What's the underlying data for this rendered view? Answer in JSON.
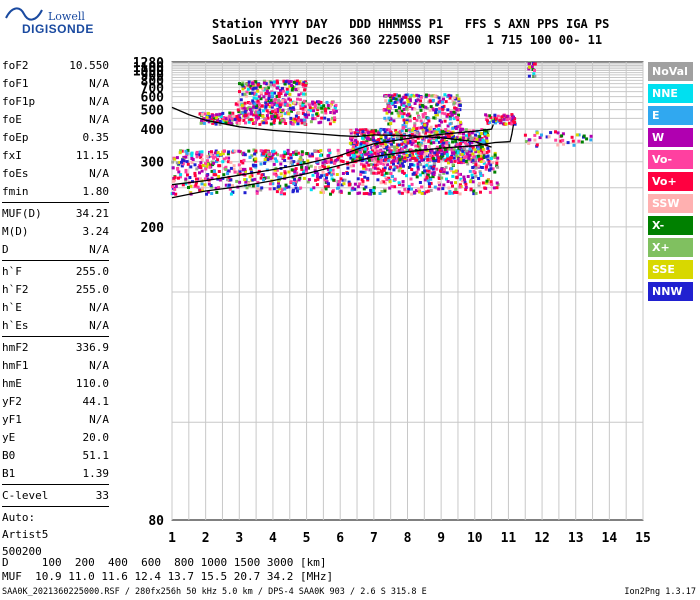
{
  "logo": {
    "line1": "Lowell",
    "line2": "DIGISONDE"
  },
  "header": {
    "line1": "Station YYYY DAY   DDD HHMMSS P1   FFS S AXN PPS IGA PS",
    "line2": "SaoLuis 2021 Dec26 360 225000 RSF     1 715 100 00- 11"
  },
  "params": {
    "group1": [
      {
        "k": "foF2",
        "v": "10.550"
      },
      {
        "k": "foF1",
        "v": "N/A"
      },
      {
        "k": "foF1p",
        "v": "N/A"
      },
      {
        "k": "foE",
        "v": "N/A"
      },
      {
        "k": "foEp",
        "v": "0.35"
      },
      {
        "k": "fxI",
        "v": "11.15"
      },
      {
        "k": "foEs",
        "v": "N/A"
      },
      {
        "k": "fmin",
        "v": "1.80"
      }
    ],
    "group2": [
      {
        "k": "MUF(D)",
        "v": "34.21"
      },
      {
        "k": "M(D)",
        "v": "3.24"
      },
      {
        "k": "D",
        "v": "N/A"
      }
    ],
    "group3": [
      {
        "k": "h`F",
        "v": "255.0"
      },
      {
        "k": "h`F2",
        "v": "255.0"
      },
      {
        "k": "h`E",
        "v": "N/A"
      },
      {
        "k": "h`Es",
        "v": "N/A"
      }
    ],
    "group4": [
      {
        "k": "hmF2",
        "v": "336.9"
      },
      {
        "k": "hmF1",
        "v": "N/A"
      },
      {
        "k": "hmE",
        "v": "110.0"
      },
      {
        "k": "yF2",
        "v": "44.1"
      },
      {
        "k": "yF1",
        "v": "N/A"
      },
      {
        "k": "yE",
        "v": "20.0"
      },
      {
        "k": "B0",
        "v": "51.1"
      },
      {
        "k": "B1",
        "v": "1.39"
      }
    ],
    "clevel": {
      "k": "C-level",
      "v": "33"
    },
    "auto": [
      "Auto:",
      "Artist5",
      "500200"
    ]
  },
  "legend": [
    {
      "label": "NoVal",
      "color": "#a0a0a0"
    },
    {
      "label": "NNE",
      "color": "#00e0f0"
    },
    {
      "label": "E",
      "color": "#30a8f0"
    },
    {
      "label": "W",
      "color": "#b000b0"
    },
    {
      "label": "Vo-",
      "color": "#ff40a0"
    },
    {
      "label": "Vo+",
      "color": "#ff0040"
    },
    {
      "label": "SSW",
      "color": "#ffb0b0"
    },
    {
      "label": "X-",
      "color": "#008000"
    },
    {
      "label": "X+",
      "color": "#80c060"
    },
    {
      "label": "SSE",
      "color": "#d8d800"
    },
    {
      "label": "NNW",
      "color": "#2020d0"
    }
  ],
  "footer": {
    "line1": "D     100  200  400  600  800 1000 1500 3000 [km]",
    "line2": "MUF  10.9 11.0 11.6 12.4 13.7 15.5 20.7 34.2 [MHz]",
    "bottom": "SAA0K_2021360225000.RSF / 280fx256h 50 kHz 5.0 km / DPS-4 SAA0K 903 / 2.6 S 315.8 E",
    "version": "Ion2Png 1.3.17"
  },
  "chart_data": {
    "type": "scatter",
    "x_axis": {
      "range": [
        1,
        15
      ],
      "ticks": [
        1,
        2,
        3,
        4,
        5,
        6,
        7,
        8,
        9,
        10,
        11,
        12,
        13,
        14,
        15
      ]
    },
    "y_axis": {
      "range": [
        80,
        1280
      ],
      "scale": "reciprocal",
      "ticks": [
        80,
        200,
        300,
        400,
        500,
        600,
        700,
        800,
        900,
        1000,
        1100,
        1280
      ]
    },
    "grid": true,
    "ordinary_trace": [
      [
        1,
        255
      ],
      [
        2,
        262
      ],
      [
        3,
        272
      ],
      [
        4,
        283
      ],
      [
        5,
        296
      ],
      [
        6,
        315
      ],
      [
        6.5,
        332
      ],
      [
        7,
        348
      ],
      [
        8,
        365
      ],
      [
        9,
        380
      ],
      [
        10,
        392
      ],
      [
        10.5,
        400
      ],
      [
        10.55,
        420
      ]
    ],
    "extraordinary_trace": [
      [
        1,
        235
      ],
      [
        2,
        245
      ],
      [
        3,
        252
      ],
      [
        4,
        262
      ],
      [
        5,
        275
      ],
      [
        6,
        292
      ],
      [
        7,
        312
      ],
      [
        8,
        325
      ],
      [
        9,
        335
      ],
      [
        10,
        342
      ],
      [
        10.6,
        352
      ],
      [
        11.05,
        355
      ],
      [
        11.1,
        380
      ],
      [
        11.15,
        420
      ]
    ],
    "profile_curve": [
      [
        1,
        515
      ],
      [
        1.5,
        470
      ],
      [
        2,
        440
      ],
      [
        3,
        410
      ],
      [
        4,
        395
      ],
      [
        5,
        385
      ],
      [
        6,
        375
      ],
      [
        6.5,
        372
      ],
      [
        7,
        378
      ],
      [
        8,
        375
      ],
      [
        9,
        368
      ],
      [
        10,
        355
      ],
      [
        10.5,
        338
      ]
    ],
    "scatter_clusters": [
      {
        "x": [
          1.0,
          10.7
        ],
        "y": [
          240,
          330
        ],
        "n": 1100
      },
      {
        "x": [
          6.3,
          10.4
        ],
        "y": [
          300,
          400
        ],
        "n": 700
      },
      {
        "x": [
          7.3,
          9.6
        ],
        "y": [
          400,
          620
        ],
        "n": 260
      },
      {
        "x": [
          1.8,
          2.9
        ],
        "y": [
          420,
          480
        ],
        "n": 90
      },
      {
        "x": [
          2.9,
          5.9
        ],
        "y": [
          420,
          560
        ],
        "n": 320
      },
      {
        "x": [
          3.0,
          5.0
        ],
        "y": [
          560,
          790
        ],
        "n": 160
      },
      {
        "x": [
          10.3,
          11.2
        ],
        "y": [
          420,
          470
        ],
        "n": 60
      },
      {
        "x": [
          11.5,
          13.5
        ],
        "y": [
          340,
          390
        ],
        "n": 40
      },
      {
        "x": [
          11.6,
          11.8
        ],
        "y": [
          860,
          1280
        ],
        "n": 14
      }
    ]
  }
}
